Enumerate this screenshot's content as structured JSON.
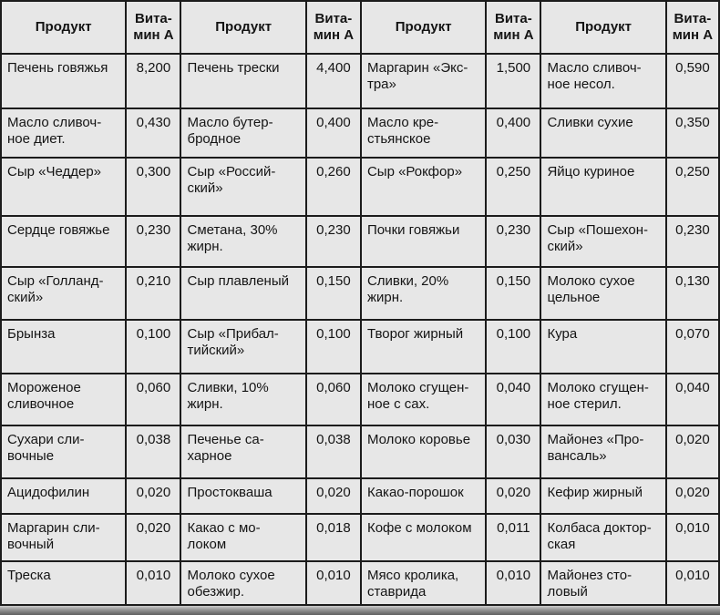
{
  "colors": {
    "cell_bg": "#e7e7e7",
    "border": "#1c1c1c",
    "text": "#141414",
    "bottom_bar": "#4c4c4c"
  },
  "table": {
    "header": {
      "product": "Продукт",
      "vitamin": "Вита-\nмин А"
    },
    "column_pairs": 4,
    "rows": [
      [
        {
          "product": "Печень говяжья",
          "value": "8,200"
        },
        {
          "product": "Печень трески",
          "value": "4,400"
        },
        {
          "product": "Маргарин «Экс-\nтра»",
          "value": "1,500"
        },
        {
          "product": "Масло сливоч-\nное несол.",
          "value": "0,590"
        }
      ],
      [
        {
          "product": "Масло сливоч-\nное диет.",
          "value": "0,430"
        },
        {
          "product": "Масло бутер-\nбродное",
          "value": "0,400"
        },
        {
          "product": "Масло кре-\nстьянское",
          "value": "0,400"
        },
        {
          "product": "Сливки сухие",
          "value": "0,350"
        }
      ],
      [
        {
          "product": "Сыр «Чеддер»",
          "value": "0,300"
        },
        {
          "product": "Сыр «Россий-\nский»",
          "value": "0,260"
        },
        {
          "product": "Сыр «Рокфор»",
          "value": "0,250"
        },
        {
          "product": "Яйцо куриное",
          "value": "0,250"
        }
      ],
      [
        {
          "product": "Сердце говяжье",
          "value": "0,230"
        },
        {
          "product": "Сметана, 30%\nжирн.",
          "value": "0,230"
        },
        {
          "product": "Почки говяжьи",
          "value": "0,230"
        },
        {
          "product": "Сыр «Пошехон-\nский»",
          "value": "0,230"
        }
      ],
      [
        {
          "product": "Сыр «Голланд-\nский»",
          "value": "0,210"
        },
        {
          "product": "Сыр плавленый",
          "value": "0,150"
        },
        {
          "product": "Сливки, 20%\nжирн.",
          "value": "0,150"
        },
        {
          "product": "Молоко сухое\nцельное",
          "value": "0,130"
        }
      ],
      [
        {
          "product": "Брынза",
          "value": "0,100"
        },
        {
          "product": "Сыр «Прибал-\nтийский»",
          "value": "0,100"
        },
        {
          "product": "Творог жирный",
          "value": "0,100"
        },
        {
          "product": "Кура",
          "value": "0,070"
        }
      ],
      [
        {
          "product": "Мороженое\nсливочное",
          "value": "0,060"
        },
        {
          "product": "Сливки, 10%\nжирн.",
          "value": "0,060"
        },
        {
          "product": "Молоко сгущен-\nное с сах.",
          "value": "0,040"
        },
        {
          "product": "Молоко сгущен-\nное стерил.",
          "value": "0,040"
        }
      ],
      [
        {
          "product": "Сухари сли-\nвочные",
          "value": "0,038"
        },
        {
          "product": "Печенье са-\nхарное",
          "value": "0,038"
        },
        {
          "product": "Молоко коровье",
          "value": "0,030"
        },
        {
          "product": "Майонез «Про-\nвансаль»",
          "value": "0,020"
        }
      ],
      [
        {
          "product": "Ацидофилин",
          "value": "0,020"
        },
        {
          "product": "Простокваша",
          "value": "0,020"
        },
        {
          "product": "Какао-порошок",
          "value": "0,020"
        },
        {
          "product": "Кефир жирный",
          "value": "0,020"
        }
      ],
      [
        {
          "product": "Маргарин сли-\nвочный",
          "value": "0,020"
        },
        {
          "product": "Какао с мо-\nлоком",
          "value": "0,018"
        },
        {
          "product": "Кофе с молоком",
          "value": "0,011"
        },
        {
          "product": "Колбаса доктор-\nская",
          "value": "0,010"
        }
      ],
      [
        {
          "product": "Треска",
          "value": "0,010"
        },
        {
          "product": "Молоко сухое\nобезжир.",
          "value": "0,010"
        },
        {
          "product": "Мясо кролика,\nставрида",
          "value": "0,010"
        },
        {
          "product": "Майонез сто-\nловый",
          "value": "0,010"
        }
      ]
    ]
  }
}
